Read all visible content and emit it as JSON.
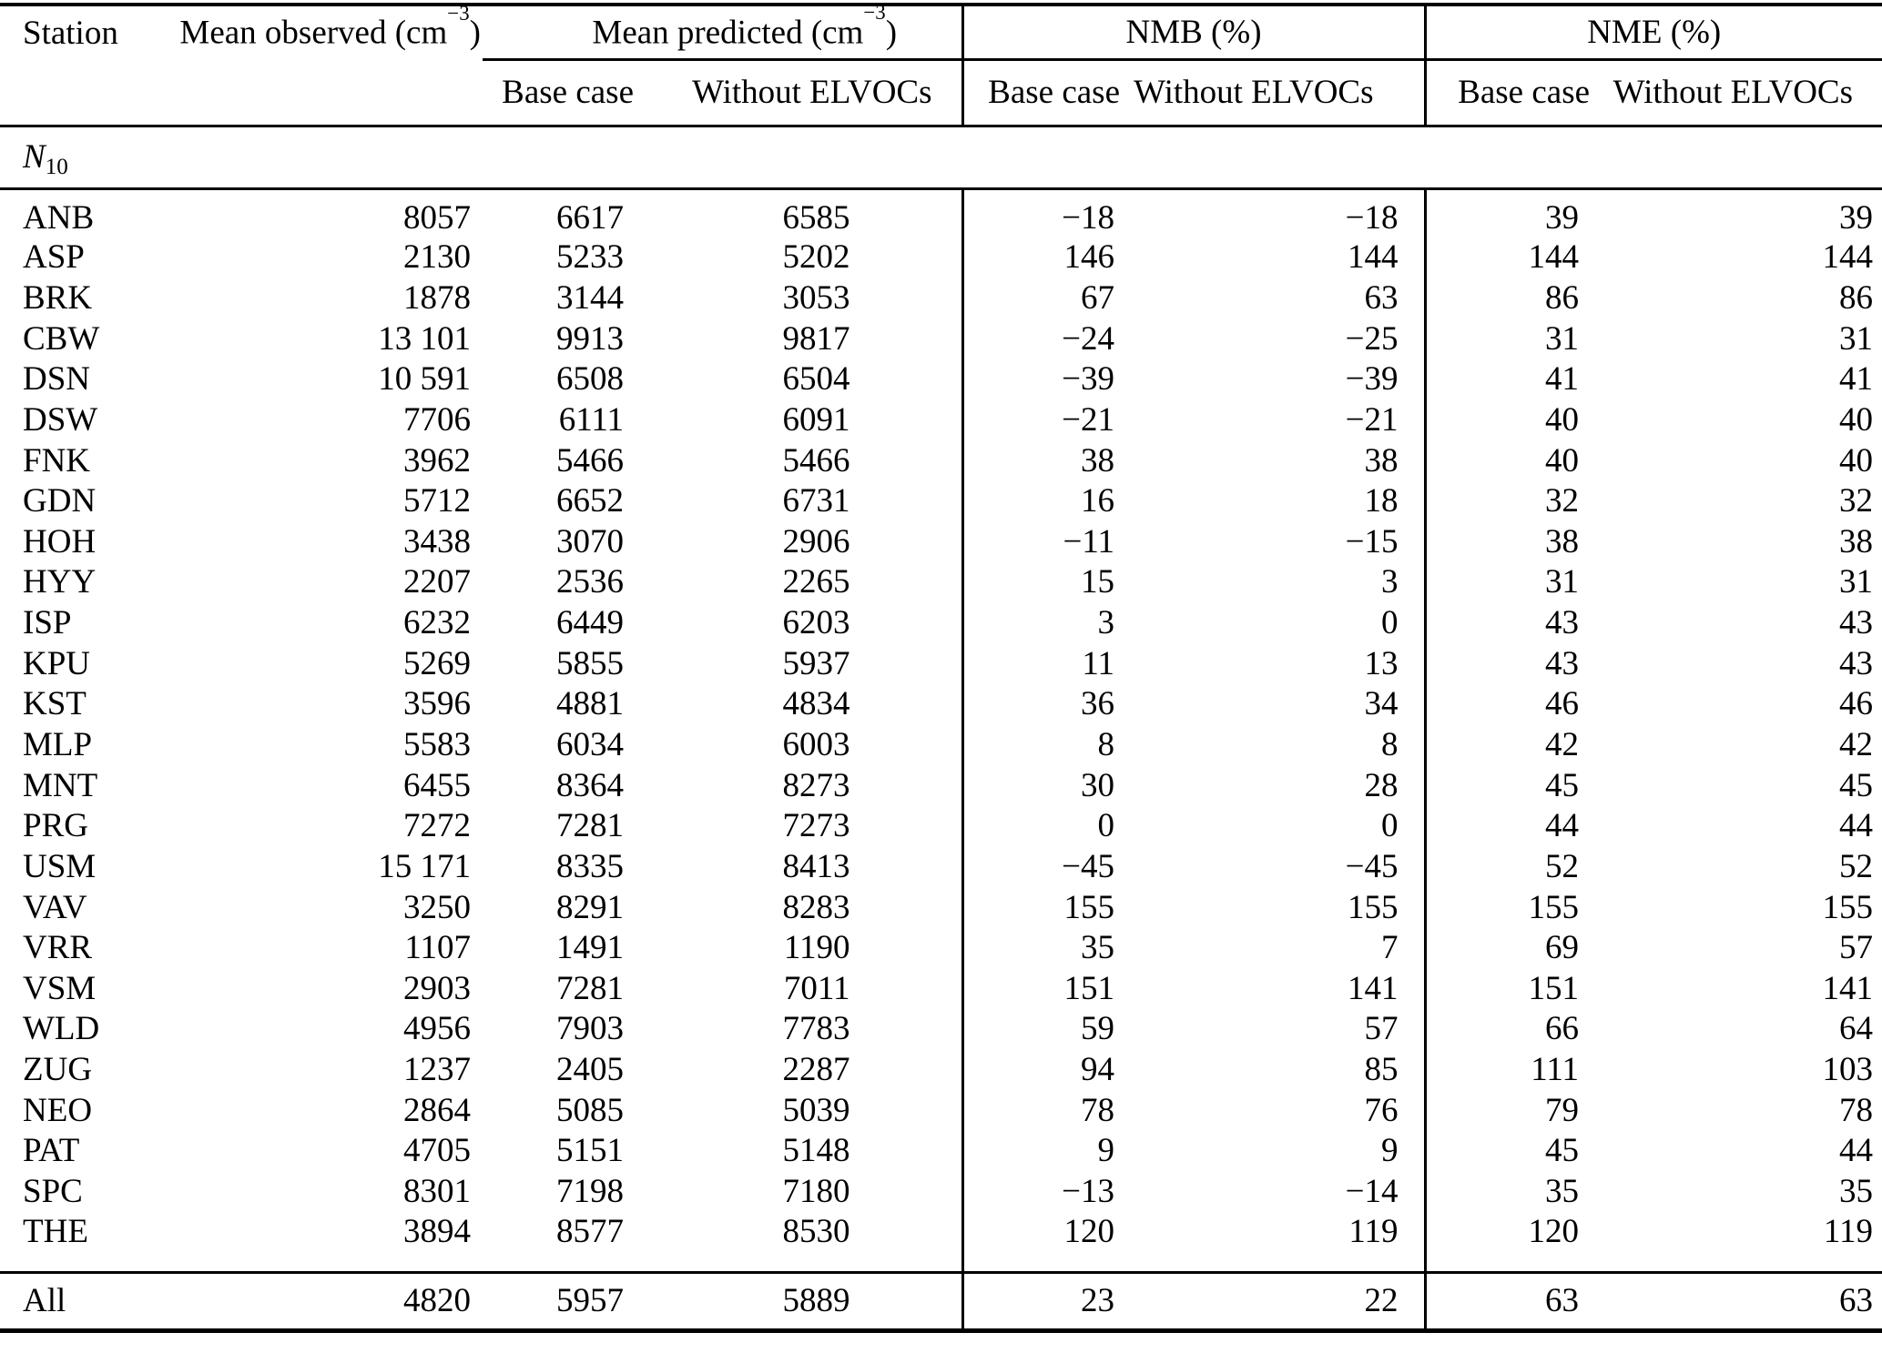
{
  "table": {
    "headers": {
      "station": "Station",
      "mean_observed": {
        "prefix": "Mean observed (cm",
        "sup": "−3",
        "suffix": ")"
      },
      "mean_predicted": {
        "prefix": "Mean predicted (cm",
        "sup": "−3",
        "suffix": ")"
      },
      "nmb": "NMB (%)",
      "nme": "NME (%)",
      "sub_pred_base": "Base case",
      "sub_pred_without": "Without ELVOCs",
      "sub_nmb_base": "Base case",
      "sub_nmb_without": "Without ELVOCs",
      "sub_nme_base": "Base case",
      "sub_nme_without": "Without ELVOCs"
    },
    "section_label": {
      "letter": "N",
      "subscript": "10"
    },
    "column_keys": [
      "station",
      "mean_observed",
      "pred_base_case",
      "pred_without_elvocs",
      "nmb_base_case",
      "nmb_without_elvocs",
      "nme_base_case",
      "nme_without_elvocs"
    ],
    "rows": [
      [
        "ANB",
        "8057",
        "6617",
        "6585",
        "−18",
        "−18",
        "39",
        "39"
      ],
      [
        "ASP",
        "2130",
        "5233",
        "5202",
        "146",
        "144",
        "144",
        "144"
      ],
      [
        "BRK",
        "1878",
        "3144",
        "3053",
        "67",
        "63",
        "86",
        "86"
      ],
      [
        "CBW",
        "13 101",
        "9913",
        "9817",
        "−24",
        "−25",
        "31",
        "31"
      ],
      [
        "DSN",
        "10 591",
        "6508",
        "6504",
        "−39",
        "−39",
        "41",
        "41"
      ],
      [
        "DSW",
        "7706",
        "6111",
        "6091",
        "−21",
        "−21",
        "40",
        "40"
      ],
      [
        "FNK",
        "3962",
        "5466",
        "5466",
        "38",
        "38",
        "40",
        "40"
      ],
      [
        "GDN",
        "5712",
        "6652",
        "6731",
        "16",
        "18",
        "32",
        "32"
      ],
      [
        "HOH",
        "3438",
        "3070",
        "2906",
        "−11",
        "−15",
        "38",
        "38"
      ],
      [
        "HYY",
        "2207",
        "2536",
        "2265",
        "15",
        "3",
        "31",
        "31"
      ],
      [
        "ISP",
        "6232",
        "6449",
        "6203",
        "3",
        "0",
        "43",
        "43"
      ],
      [
        "KPU",
        "5269",
        "5855",
        "5937",
        "11",
        "13",
        "43",
        "43"
      ],
      [
        "KST",
        "3596",
        "4881",
        "4834",
        "36",
        "34",
        "46",
        "46"
      ],
      [
        "MLP",
        "5583",
        "6034",
        "6003",
        "8",
        "8",
        "42",
        "42"
      ],
      [
        "MNT",
        "6455",
        "8364",
        "8273",
        "30",
        "28",
        "45",
        "45"
      ],
      [
        "PRG",
        "7272",
        "7281",
        "7273",
        "0",
        "0",
        "44",
        "44"
      ],
      [
        "USM",
        "15 171",
        "8335",
        "8413",
        "−45",
        "−45",
        "52",
        "52"
      ],
      [
        "VAV",
        "3250",
        "8291",
        "8283",
        "155",
        "155",
        "155",
        "155"
      ],
      [
        "VRR",
        "1107",
        "1491",
        "1190",
        "35",
        "7",
        "69",
        "57"
      ],
      [
        "VSM",
        "2903",
        "7281",
        "7011",
        "151",
        "141",
        "151",
        "141"
      ],
      [
        "WLD",
        "4956",
        "7903",
        "7783",
        "59",
        "57",
        "66",
        "64"
      ],
      [
        "ZUG",
        "1237",
        "2405",
        "2287",
        "94",
        "85",
        "111",
        "103"
      ],
      [
        "NEO",
        "2864",
        "5085",
        "5039",
        "78",
        "76",
        "79",
        "78"
      ],
      [
        "PAT",
        "4705",
        "5151",
        "5148",
        "9",
        "9",
        "45",
        "44"
      ],
      [
        "SPC",
        "8301",
        "7198",
        "7180",
        "−13",
        "−14",
        "35",
        "35"
      ],
      [
        "THE",
        "3894",
        "8577",
        "8530",
        "120",
        "119",
        "120",
        "119"
      ]
    ],
    "total_row": [
      "All",
      "4820",
      "5957",
      "5889",
      "23",
      "22",
      "63",
      "63"
    ]
  }
}
